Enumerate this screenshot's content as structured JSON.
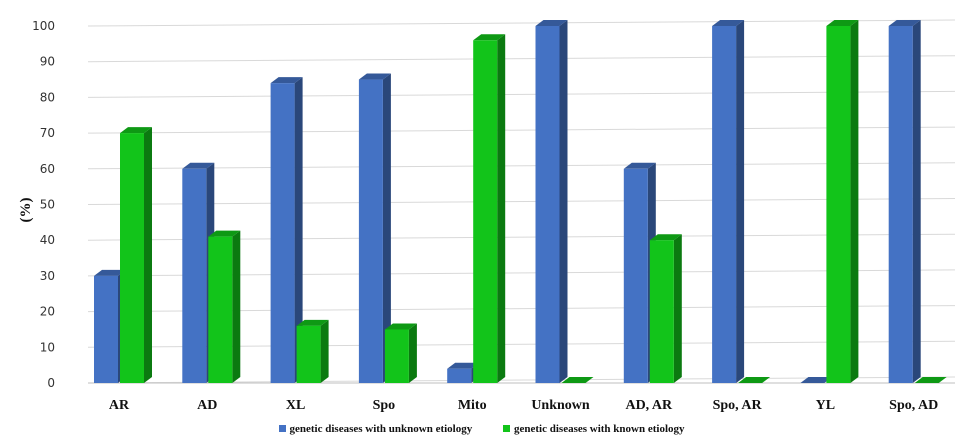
{
  "chart_data": {
    "type": "bar",
    "categories": [
      "AR",
      "AD",
      "XL",
      "Spo",
      "Mito",
      "Unknown",
      "AD, AR",
      "Spo, AR",
      "YL",
      "Spo, AD"
    ],
    "series": [
      {
        "name": "genetic diseases with unknown etiology",
        "color": "#4472c4",
        "values": [
          30,
          60,
          84,
          85,
          4,
          100,
          60,
          100,
          0,
          100
        ]
      },
      {
        "name": "genetic diseases with known etiology",
        "color": "#12c41a",
        "values": [
          70,
          41,
          16,
          15,
          96,
          0,
          40,
          0,
          100,
          0
        ]
      }
    ],
    "ylabel": "(%)",
    "ylim": [
      0,
      100
    ],
    "yticks": [
      "0",
      "10",
      "20",
      "30",
      "40",
      "50",
      "60",
      "70",
      "80",
      "90",
      "100"
    ],
    "grid": true,
    "legend_position": "bottom"
  }
}
